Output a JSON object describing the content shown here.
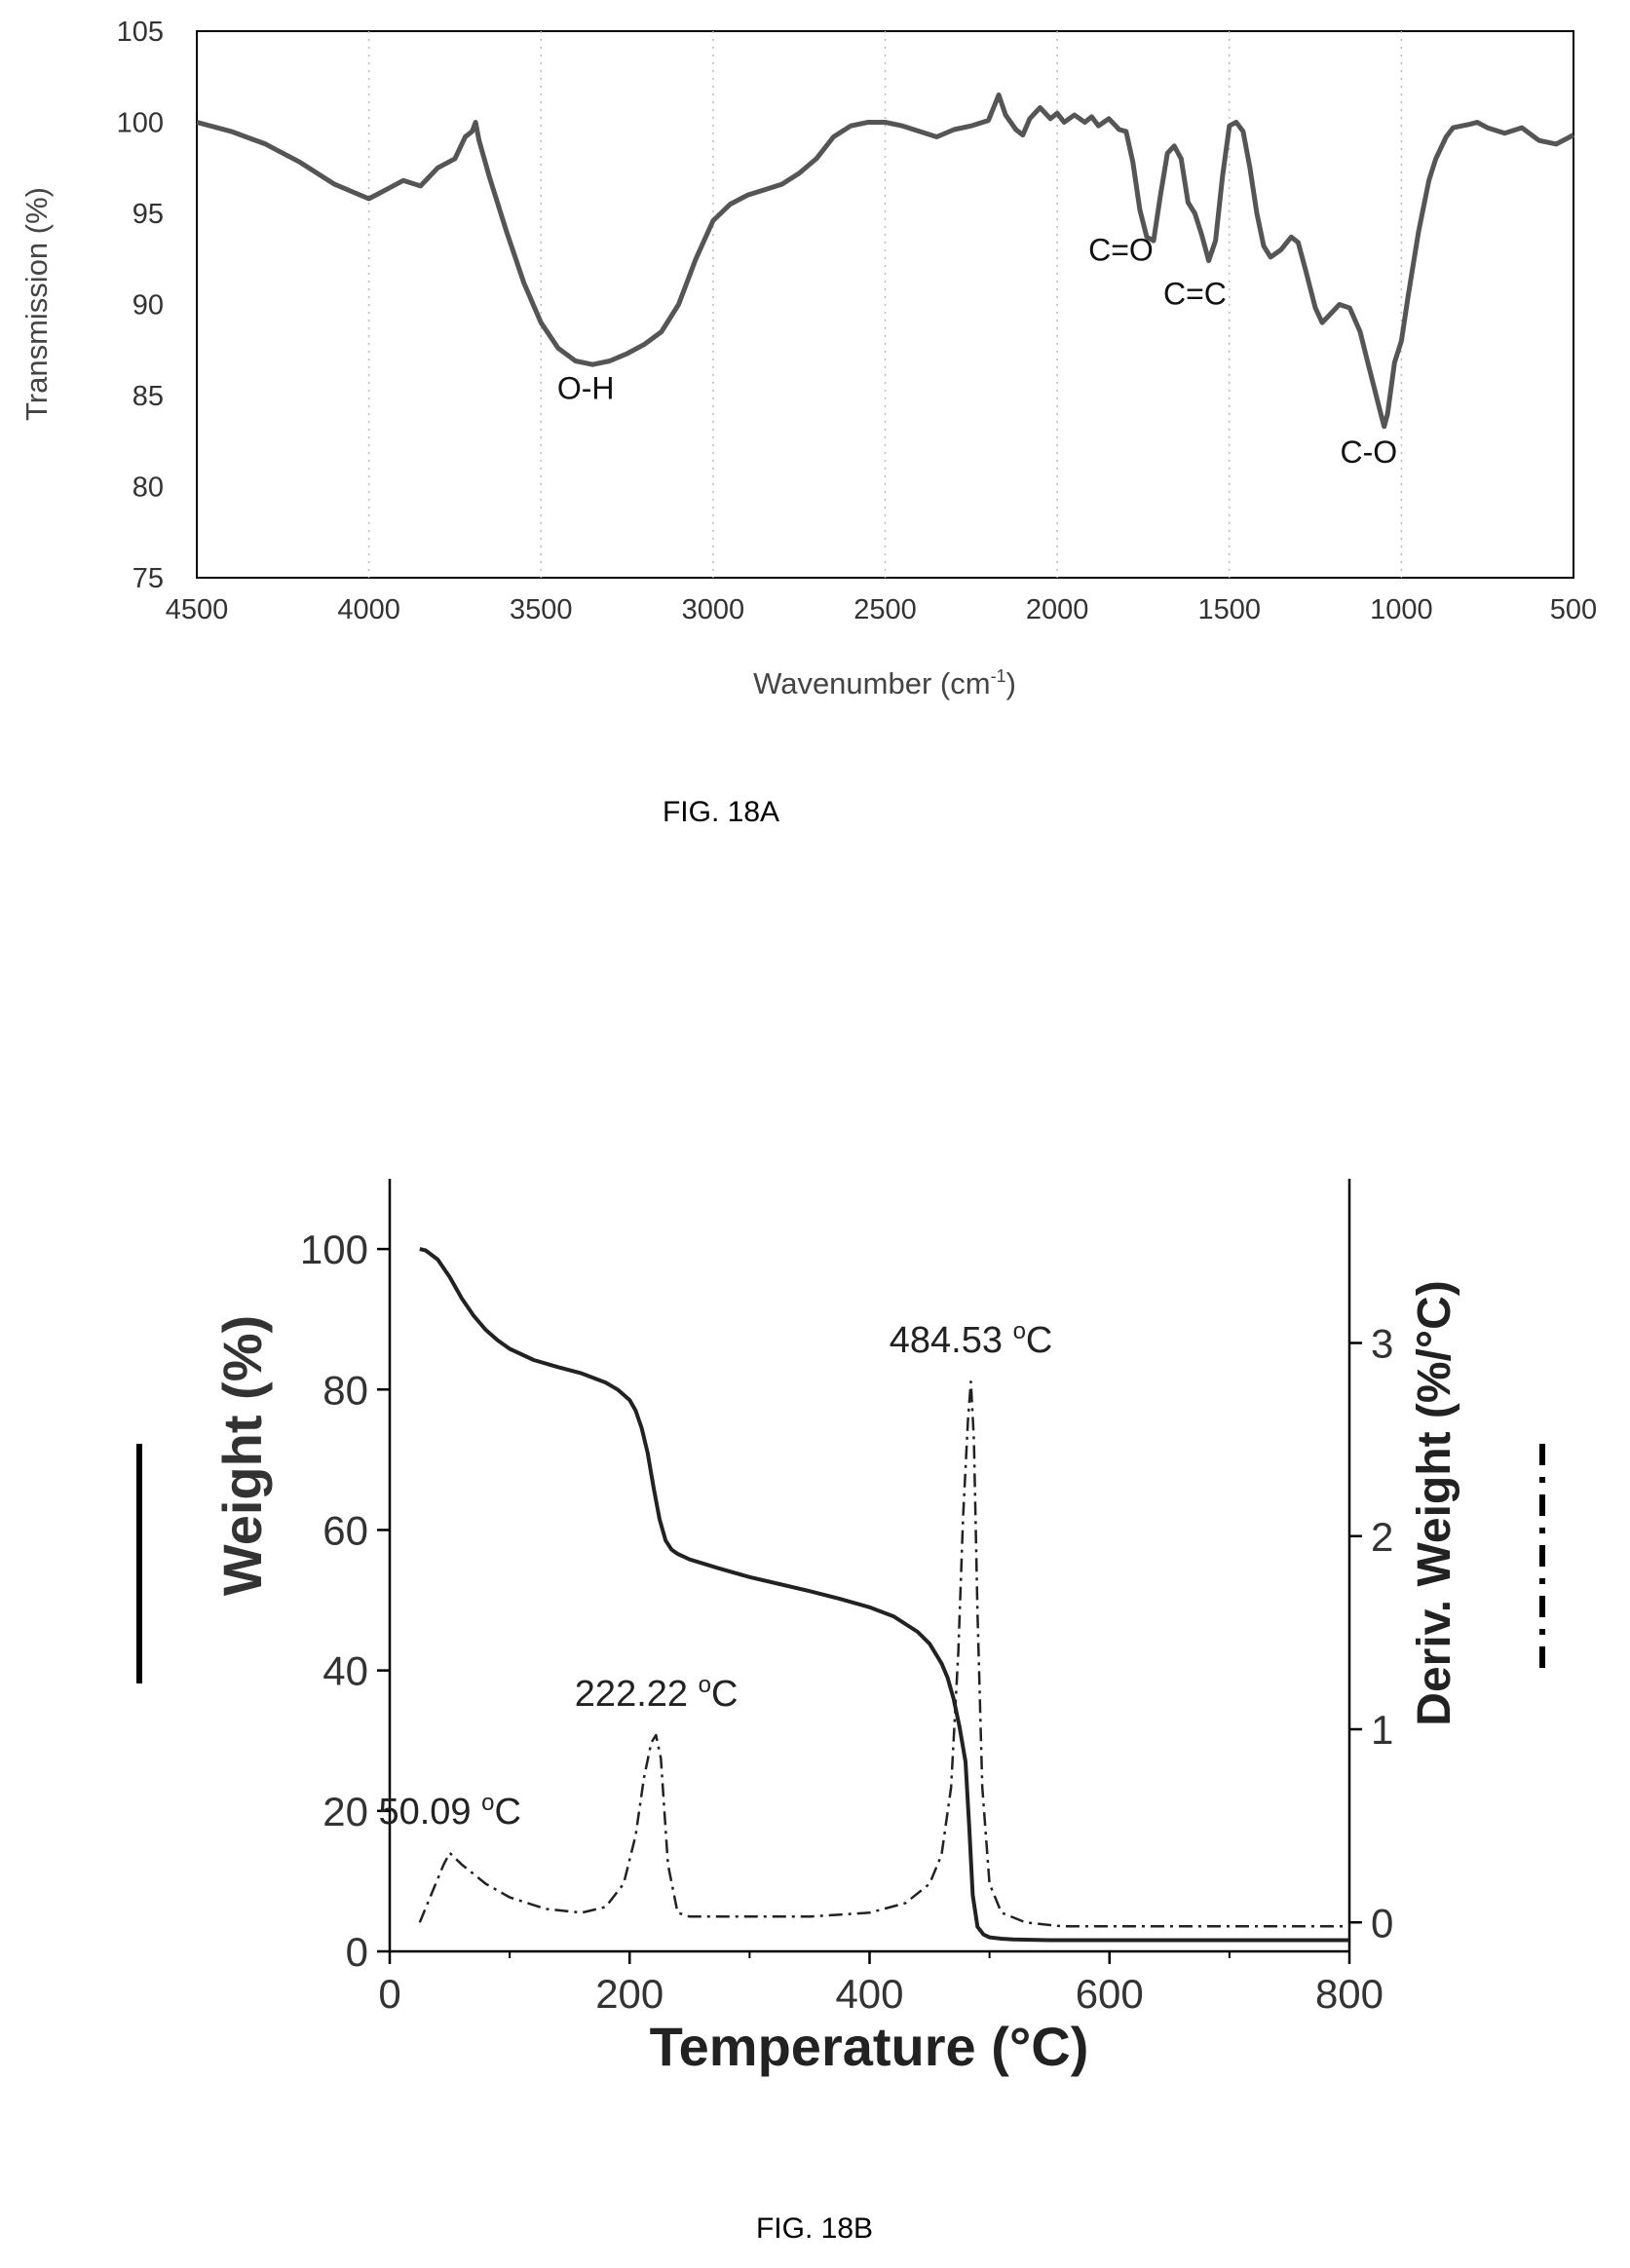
{
  "chart_data": [
    {
      "type": "line",
      "caption": "FIG. 18A",
      "xlabel": "Wavenumber (cm",
      "xlabel_sup": "-1",
      "xlabel_end": ")",
      "ylabel": "Transmission (%)",
      "xlim": [
        4500,
        500
      ],
      "ylim": [
        75,
        105
      ],
      "xticks": [
        4500,
        4000,
        3500,
        3000,
        2500,
        2000,
        1500,
        1000,
        500
      ],
      "yticks": [
        75,
        80,
        85,
        90,
        95,
        100,
        105
      ],
      "grid": "dotted-vertical",
      "color": "#555555",
      "series": [
        {
          "x": [
            4500,
            4400,
            4300,
            4200,
            4100,
            4000,
            3950,
            3900,
            3850,
            3800,
            3750,
            3720,
            3700,
            3690,
            3680,
            3650,
            3600,
            3550,
            3500,
            3450,
            3400,
            3350,
            3300,
            3250,
            3200,
            3150,
            3100,
            3050,
            3000,
            2950,
            2900,
            2850,
            2800,
            2750,
            2700,
            2650,
            2600,
            2550,
            2500,
            2450,
            2400,
            2350,
            2300,
            2250,
            2200,
            2170,
            2150,
            2120,
            2100,
            2080,
            2050,
            2020,
            2000,
            1980,
            1950,
            1920,
            1900,
            1880,
            1850,
            1820,
            1800,
            1780,
            1760,
            1740,
            1720,
            1700,
            1680,
            1660,
            1640,
            1620,
            1600,
            1580,
            1560,
            1540,
            1520,
            1500,
            1480,
            1460,
            1440,
            1420,
            1400,
            1380,
            1350,
            1320,
            1300,
            1280,
            1250,
            1230,
            1200,
            1180,
            1150,
            1120,
            1100,
            1080,
            1060,
            1050,
            1040,
            1020,
            1000,
            980,
            950,
            920,
            900,
            870,
            850,
            800,
            780,
            750,
            700,
            650,
            600,
            550,
            500
          ],
          "y": [
            100.0,
            99.5,
            98.8,
            97.8,
            96.6,
            95.8,
            96.3,
            96.8,
            96.5,
            97.5,
            98.0,
            99.2,
            99.5,
            100.0,
            99.0,
            97.0,
            94.0,
            91.2,
            89.0,
            87.6,
            86.9,
            86.7,
            86.9,
            87.3,
            87.8,
            88.5,
            90.0,
            92.5,
            94.6,
            95.5,
            96.0,
            96.3,
            96.6,
            97.2,
            98.0,
            99.2,
            99.8,
            100.0,
            100.0,
            99.8,
            99.5,
            99.2,
            99.6,
            99.8,
            100.1,
            101.5,
            100.4,
            99.6,
            99.3,
            100.2,
            100.8,
            100.2,
            100.5,
            100.0,
            100.4,
            100.0,
            100.3,
            99.8,
            100.2,
            99.6,
            99.5,
            97.8,
            95.2,
            93.7,
            93.5,
            96.0,
            98.3,
            98.7,
            98.0,
            95.6,
            95.0,
            93.8,
            92.4,
            93.5,
            97.0,
            99.8,
            100.0,
            99.5,
            97.5,
            95.0,
            93.2,
            92.6,
            93.0,
            93.7,
            93.4,
            92.0,
            89.8,
            89.0,
            89.6,
            90.0,
            89.8,
            88.5,
            87.0,
            85.5,
            84.0,
            83.3,
            84.0,
            86.8,
            88.0,
            90.5,
            94.0,
            96.8,
            98.0,
            99.2,
            99.7,
            99.9,
            100.0,
            99.7,
            99.4,
            99.7,
            99.0,
            98.8,
            99.3
          ]
        }
      ],
      "annotations": [
        {
          "text": "O-H",
          "x": 3370,
          "y": 84.8
        },
        {
          "text": "C=O",
          "x": 1815,
          "y": 92.4
        },
        {
          "text": "C=C",
          "x": 1600,
          "y": 90.0
        },
        {
          "text": "C-O",
          "x": 1095,
          "y": 81.3
        }
      ]
    },
    {
      "type": "line",
      "caption": "FIG. 18B",
      "xlabel": "Temperature (°C)",
      "ylabel": "Weight (%)",
      "ylabel_right": "Deriv. Weight (%/°C)",
      "xlim": [
        0,
        800
      ],
      "ylim": [
        0,
        110
      ],
      "ylim_right": [
        -0.15,
        3.85
      ],
      "xticks": [
        0,
        200,
        400,
        600,
        800
      ],
      "yticks": [
        0,
        20,
        40,
        60,
        80,
        100
      ],
      "yticks_right": [
        0,
        1,
        2,
        3
      ],
      "grid": false,
      "legend": "line-style markers beside each y-axis",
      "series": [
        {
          "style": "solid",
          "axis": "left",
          "x": [
            25,
            30,
            40,
            50,
            60,
            70,
            80,
            90,
            100,
            120,
            140,
            160,
            180,
            190,
            200,
            205,
            210,
            215,
            220,
            225,
            230,
            235,
            240,
            245,
            250,
            275,
            300,
            325,
            350,
            375,
            400,
            420,
            440,
            450,
            460,
            465,
            470,
            475,
            480,
            483,
            486,
            490,
            495,
            500,
            510,
            520,
            550,
            600,
            700,
            800
          ],
          "y": [
            100,
            99.8,
            98.5,
            96.0,
            93.0,
            90.5,
            88.5,
            87.0,
            85.8,
            84.2,
            83.2,
            82.3,
            81.0,
            80.0,
            78.5,
            77.0,
            74.5,
            71.0,
            66.0,
            61.5,
            58.5,
            57.2,
            56.6,
            56.2,
            55.8,
            54.5,
            53.3,
            52.3,
            51.3,
            50.2,
            49.0,
            47.7,
            45.5,
            43.8,
            41.0,
            39.0,
            36.0,
            32.0,
            27.0,
            18.0,
            8.0,
            3.5,
            2.4,
            2.0,
            1.8,
            1.7,
            1.6,
            1.6,
            1.6,
            1.6
          ]
        },
        {
          "style": "dash-dot",
          "axis": "right",
          "x": [
            25,
            35,
            45,
            50,
            60,
            80,
            100,
            130,
            160,
            180,
            195,
            205,
            212,
            218,
            222,
            226,
            232,
            240,
            250,
            300,
            350,
            400,
            430,
            450,
            460,
            468,
            474,
            478,
            482,
            484.5,
            487,
            490,
            494,
            500,
            510,
            530,
            560,
            600,
            700,
            800
          ],
          "y": [
            0.0,
            0.15,
            0.3,
            0.36,
            0.3,
            0.2,
            0.13,
            0.07,
            0.05,
            0.08,
            0.2,
            0.45,
            0.75,
            0.93,
            0.97,
            0.85,
            0.3,
            0.05,
            0.03,
            0.03,
            0.03,
            0.05,
            0.1,
            0.2,
            0.35,
            0.7,
            1.4,
            2.1,
            2.6,
            2.8,
            2.5,
            1.6,
            0.7,
            0.2,
            0.05,
            0.0,
            -0.02,
            -0.02,
            -0.02,
            -0.02
          ]
        }
      ],
      "annotations": [
        {
          "text": "50.09",
          "unit": "C",
          "x": 50.09,
          "y": 0.36,
          "axis": "right"
        },
        {
          "text": "222.22",
          "unit": "C",
          "x": 222.22,
          "y": 0.97,
          "axis": "right"
        },
        {
          "text": "484.53",
          "unit": "C",
          "x": 484.53,
          "y": 2.8,
          "axis": "right"
        }
      ]
    }
  ]
}
